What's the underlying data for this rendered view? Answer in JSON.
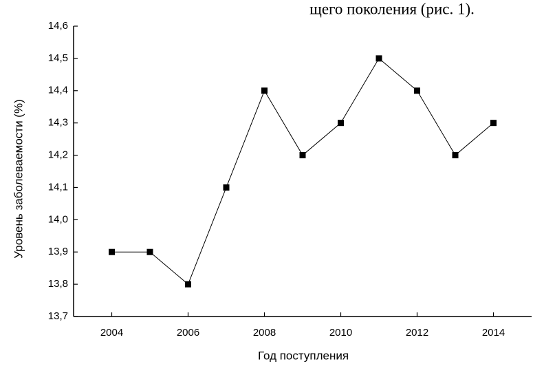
{
  "chart_data": {
    "type": "line",
    "caption": "щего поколения (рис. 1).",
    "xlabel": "Год поступления",
    "ylabel": "Уровень заболеваемости (%)",
    "x": [
      2004,
      2005,
      2006,
      2007,
      2008,
      2009,
      2010,
      2011,
      2012,
      2013,
      2014
    ],
    "values": [
      13.9,
      13.9,
      13.8,
      14.1,
      14.4,
      14.2,
      14.3,
      14.5,
      14.4,
      14.2,
      14.3
    ],
    "color": "#000000",
    "xlim": [
      2003,
      2015
    ],
    "xticks": [
      2004,
      2006,
      2008,
      2010,
      2012,
      2014
    ],
    "ylim": [
      13.7,
      14.6
    ],
    "yticks": [
      {
        "value": 13.7,
        "label": "13,7"
      },
      {
        "value": 13.8,
        "label": "13,8"
      },
      {
        "value": 13.9,
        "label": "13,9"
      },
      {
        "value": 14.0,
        "label": "14,0"
      },
      {
        "value": 14.1,
        "label": "14,1"
      },
      {
        "value": 14.2,
        "label": "14,2"
      },
      {
        "value": 14.3,
        "label": "14,3"
      },
      {
        "value": 14.4,
        "label": "14,4"
      },
      {
        "value": 14.5,
        "label": "14,5"
      },
      {
        "value": 14.6,
        "label": "14,6"
      }
    ]
  }
}
